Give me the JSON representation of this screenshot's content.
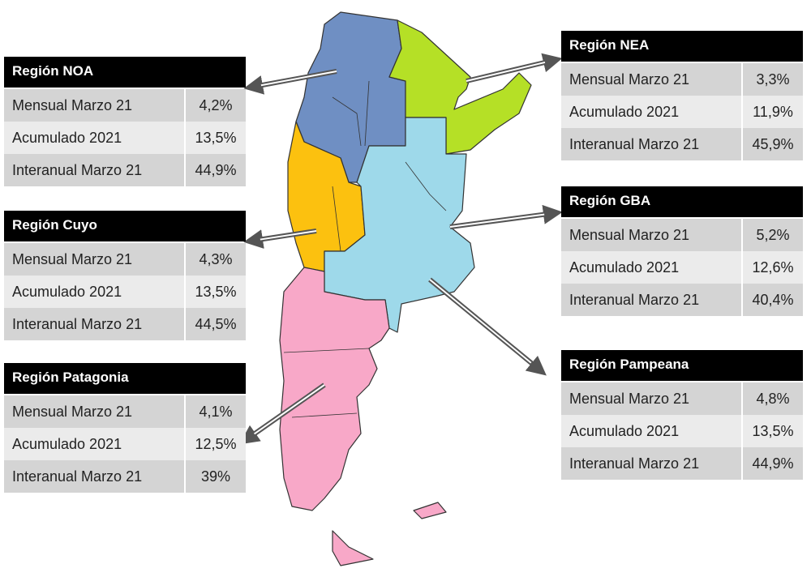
{
  "regions": [
    {
      "title": "Región NOA",
      "rows": [
        [
          "Mensual Marzo 21",
          "4,2%"
        ],
        [
          "Acumulado 2021",
          "13,5%"
        ],
        [
          "Interanual Marzo 21",
          "44,9%"
        ]
      ]
    },
    {
      "title": "Región Cuyo",
      "rows": [
        [
          "Mensual Marzo 21",
          "4,3%"
        ],
        [
          "Acumulado 2021",
          "13,5%"
        ],
        [
          "Interanual Marzo 21",
          "44,5%"
        ]
      ]
    },
    {
      "title": "Región Patagonia",
      "rows": [
        [
          "Mensual Marzo 21",
          "4,1%"
        ],
        [
          "Acumulado 2021",
          "12,5%"
        ],
        [
          "Interanual Marzo 21",
          "39%"
        ]
      ]
    },
    {
      "title": "Región NEA",
      "rows": [
        [
          "Mensual Marzo 21",
          "3,3%"
        ],
        [
          "Acumulado 2021",
          "11,9%"
        ],
        [
          "Interanual Marzo 21",
          "45,9%"
        ]
      ]
    },
    {
      "title": "Región GBA",
      "rows": [
        [
          "Mensual Marzo 21",
          "5,2%"
        ],
        [
          "Acumulado 2021",
          "12,6%"
        ],
        [
          "Interanual Marzo 21",
          "40,4%"
        ]
      ]
    },
    {
      "title": "Región Pampeana",
      "rows": [
        [
          "Mensual Marzo 21",
          "4,8%"
        ],
        [
          "Acumulado 2021",
          "13,5%"
        ],
        [
          "Interanual Marzo 21",
          "44,9%"
        ]
      ]
    }
  ]
}
